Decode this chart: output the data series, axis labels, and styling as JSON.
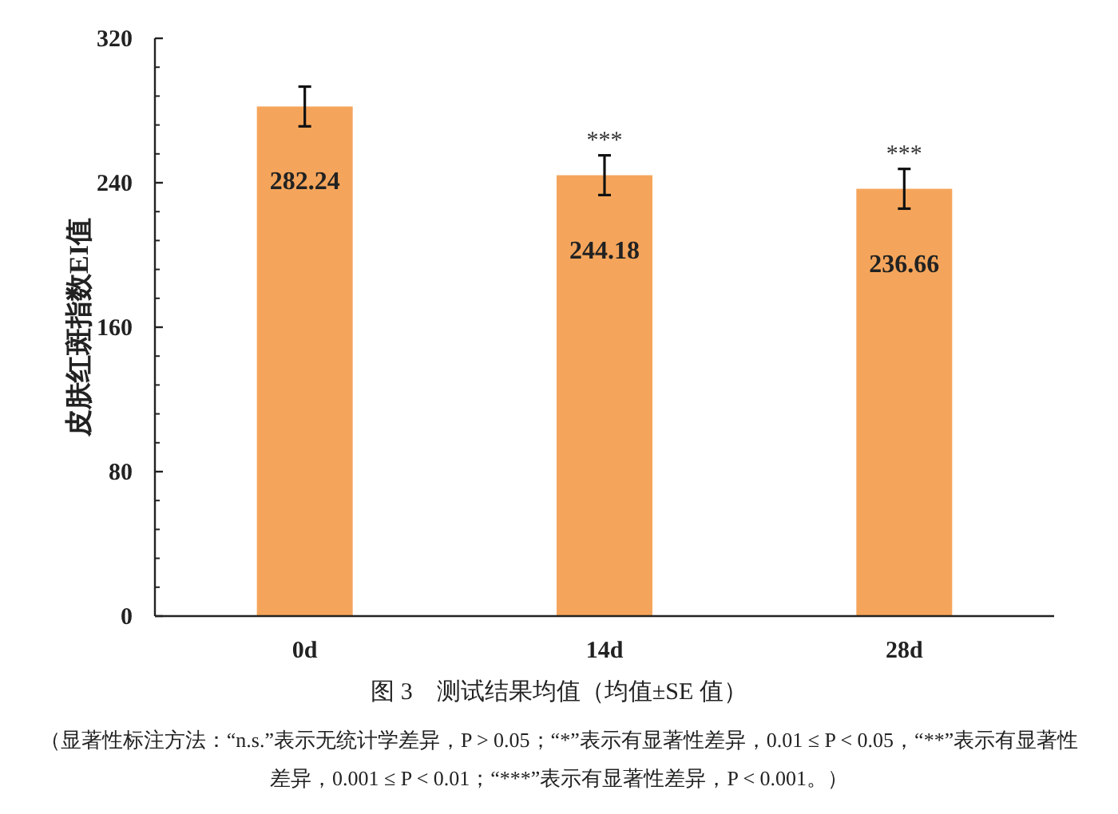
{
  "chart_data": {
    "type": "bar",
    "title": "图 3　测试结果均值（均值±SE 值）",
    "ylabel": "皮肤红斑指数EI值",
    "categories": [
      "0d",
      "14d",
      "28d"
    ],
    "values": [
      282.24,
      244.18,
      236.66
    ],
    "errors": [
      11,
      11,
      11
    ],
    "color": "#f5a55b",
    "ylim": [
      0,
      320
    ],
    "yticks": [
      0,
      80,
      160,
      240,
      320
    ],
    "data_labels": true,
    "annotations": [
      "***",
      "***",
      "（显著性标注方法：“n.s.”表示无统计学差异，P > 0.05；“*”表示有显著性差异，0.01 ≤ P < 0.05，“**”表示有显著性差异，0.001 ≤ P < 0.01；“***”表示有显著性差异，P < 0.001。）"
    ]
  }
}
